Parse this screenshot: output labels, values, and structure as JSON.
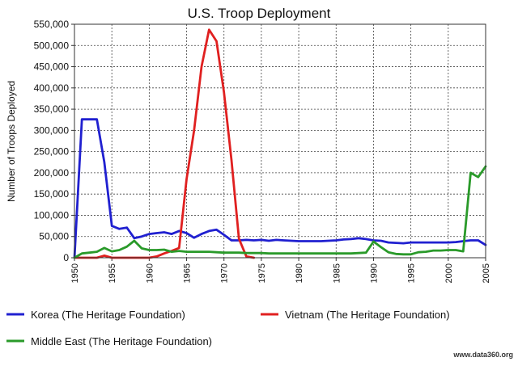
{
  "chart_data": {
    "type": "line",
    "title": "U.S. Troop Deployment",
    "xlabel": "",
    "ylabel": "Number of Troops Deployed",
    "xlim": [
      1950,
      2005
    ],
    "ylim": [
      0,
      550000
    ],
    "x_ticks": [
      1950,
      1955,
      1960,
      1965,
      1970,
      1975,
      1980,
      1985,
      1990,
      1995,
      2000,
      2005
    ],
    "y_ticks": [
      0,
      50000,
      100000,
      150000,
      200000,
      250000,
      300000,
      350000,
      400000,
      450000,
      500000,
      550000
    ],
    "y_tick_labels": [
      "0",
      "50,000",
      "100,000",
      "150,000",
      "200,000",
      "250,000",
      "300,000",
      "350,000",
      "400,000",
      "450,000",
      "500,000",
      "550,000"
    ],
    "grid": true,
    "legend_position": "bottom",
    "watermark": "www.data360.org",
    "series": [
      {
        "name": "Korea (The Heritage Foundation)",
        "color": "#2020d0",
        "x": [
          1950,
          1951,
          1952,
          1953,
          1954,
          1955,
          1956,
          1957,
          1958,
          1959,
          1960,
          1961,
          1962,
          1963,
          1964,
          1965,
          1966,
          1967,
          1968,
          1969,
          1970,
          1971,
          1972,
          1973,
          1974,
          1975,
          1976,
          1977,
          1978,
          1979,
          1980,
          1981,
          1982,
          1983,
          1984,
          1985,
          1986,
          1987,
          1988,
          1989,
          1990,
          1991,
          1992,
          1993,
          1994,
          1995,
          1996,
          1997,
          1998,
          1999,
          2000,
          2001,
          2002,
          2003,
          2004,
          2005
        ],
        "values": [
          0,
          326000,
          326000,
          326000,
          225000,
          75000,
          68000,
          71000,
          46000,
          50000,
          56000,
          58000,
          60000,
          56000,
          63000,
          58000,
          47000,
          56000,
          63000,
          66000,
          54000,
          41000,
          41000,
          42000,
          41000,
          42000,
          40000,
          42000,
          41000,
          40000,
          39000,
          39000,
          39000,
          39000,
          40000,
          41000,
          43000,
          44000,
          46000,
          44000,
          41000,
          40000,
          36000,
          35000,
          34000,
          36000,
          36000,
          36000,
          36000,
          36000,
          36000,
          37000,
          39000,
          41000,
          41000,
          30000
        ]
      },
      {
        "name": "Vietnam (The Heritage Foundation)",
        "color": "#e02020",
        "x": [
          1950,
          1951,
          1952,
          1953,
          1954,
          1955,
          1956,
          1957,
          1958,
          1959,
          1960,
          1961,
          1962,
          1963,
          1964,
          1965,
          1966,
          1967,
          1968,
          1969,
          1970,
          1971,
          1972,
          1973,
          1974
        ],
        "values": [
          0,
          0,
          0,
          0,
          5000,
          0,
          0,
          0,
          0,
          0,
          0,
          3000,
          10000,
          16000,
          23000,
          185000,
          300000,
          450000,
          537000,
          510000,
          390000,
          230000,
          45000,
          3000,
          0
        ]
      },
      {
        "name": "Middle East (The Heritage Foundation)",
        "color": "#2a9a2a",
        "x": [
          1950,
          1951,
          1952,
          1953,
          1954,
          1955,
          1956,
          1957,
          1958,
          1959,
          1960,
          1961,
          1962,
          1963,
          1964,
          1965,
          1966,
          1967,
          1968,
          1969,
          1970,
          1971,
          1972,
          1973,
          1974,
          1975,
          1976,
          1977,
          1978,
          1979,
          1980,
          1981,
          1982,
          1983,
          1984,
          1985,
          1986,
          1987,
          1988,
          1989,
          1990,
          1991,
          1992,
          1993,
          1994,
          1995,
          1996,
          1997,
          1998,
          1999,
          2000,
          2001,
          2002,
          2003,
          2004,
          2005
        ],
        "values": [
          0,
          10000,
          12000,
          14000,
          23000,
          15000,
          18000,
          26000,
          40000,
          22000,
          18000,
          18000,
          19000,
          14000,
          16000,
          14000,
          14000,
          14000,
          14000,
          13000,
          12000,
          12000,
          12000,
          11000,
          11000,
          11000,
          10000,
          10000,
          10000,
          10000,
          10000,
          10000,
          10000,
          10000,
          10000,
          10000,
          10000,
          10000,
          11000,
          12000,
          38000,
          25000,
          13000,
          9000,
          8000,
          8000,
          13000,
          14000,
          17000,
          17000,
          18000,
          18000,
          15000,
          200000,
          190000,
          215000
        ]
      }
    ]
  }
}
